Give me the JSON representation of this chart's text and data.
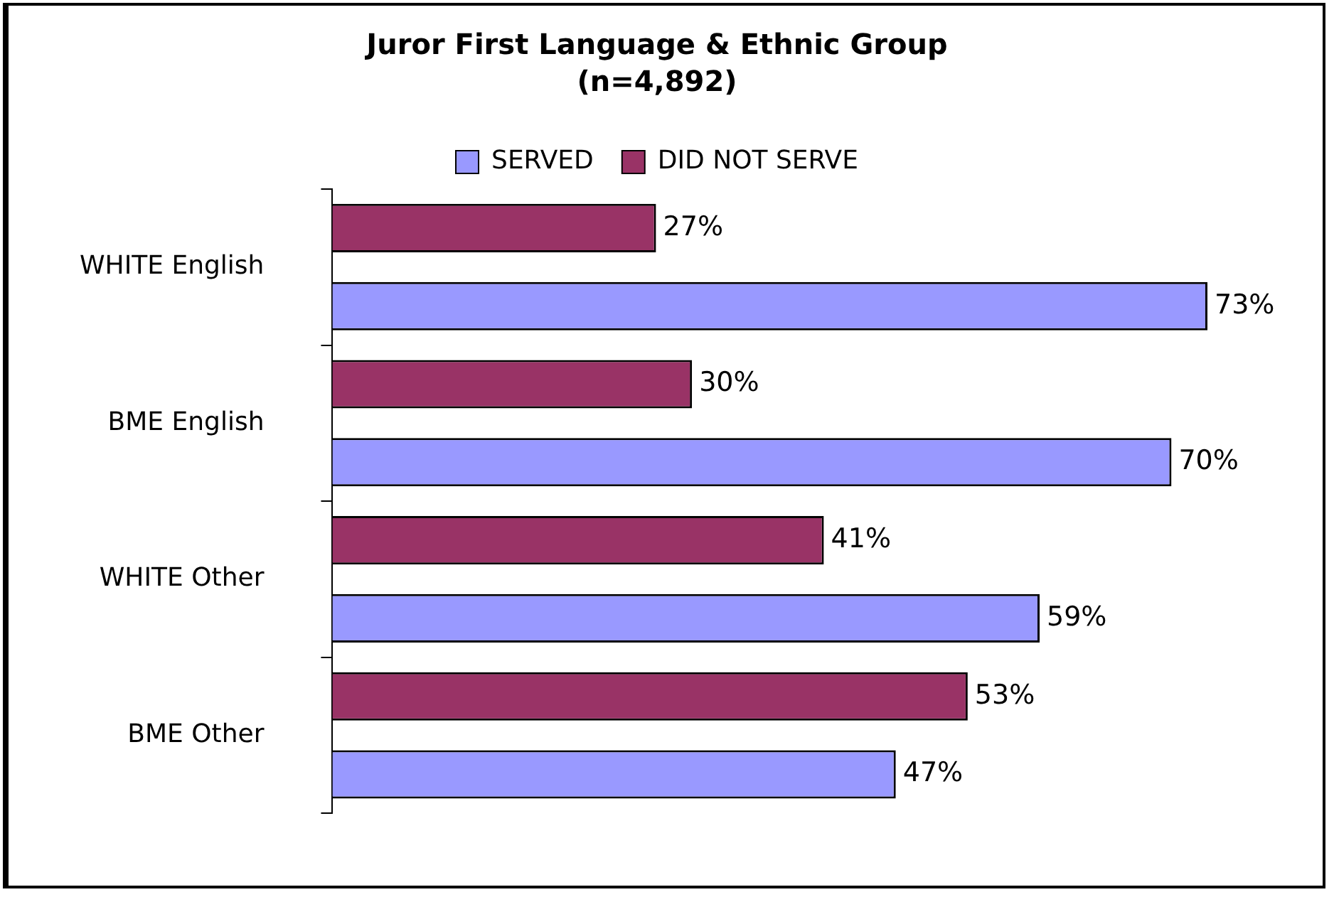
{
  "chart_data": {
    "type": "bar",
    "orientation": "horizontal",
    "title": "Juror First Language & Ethnic Group",
    "subtitle": "(n=4,892)",
    "categories": [
      "WHITE English",
      "BME English",
      "WHITE Other",
      "BME Other"
    ],
    "series": [
      {
        "name": "SERVED",
        "color": "#9999ff",
        "values": [
          73,
          70,
          59,
          47
        ],
        "value_labels": [
          "73%",
          "70%",
          "59%",
          "47%"
        ]
      },
      {
        "name": "DID NOT SERVE",
        "color": "#993366",
        "values": [
          27,
          30,
          41,
          53
        ],
        "value_labels": [
          "27%",
          "30%",
          "41%",
          "53%"
        ]
      }
    ],
    "legend": "top",
    "tick_labels": "y"
  }
}
